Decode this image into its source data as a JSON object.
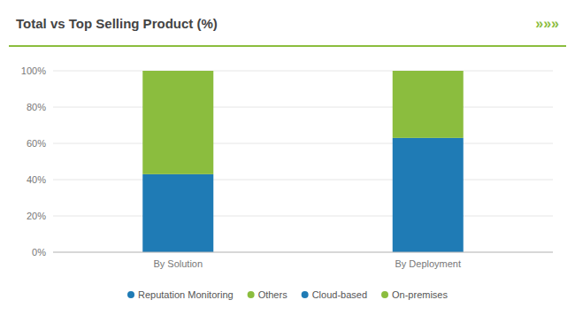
{
  "chart_data": {
    "type": "bar",
    "title": "Total vs Top Selling Product (%)",
    "categories": [
      "By Solution",
      "By Deployment"
    ],
    "series": [
      {
        "name": "Reputation Monitoring",
        "color": "#1F7BB5",
        "values": [
          43,
          null
        ]
      },
      {
        "name": "Others",
        "color": "#8BBD3E",
        "values": [
          57,
          null
        ]
      },
      {
        "name": "Cloud-based",
        "color": "#1F7BB5",
        "values": [
          null,
          63
        ]
      },
      {
        "name": "On-premises",
        "color": "#8BBD3E",
        "values": [
          null,
          37
        ]
      }
    ],
    "stacked": true,
    "ylim": [
      0,
      100
    ],
    "yticks": [
      {
        "value": 0,
        "label": "0%"
      },
      {
        "value": 20,
        "label": "20%"
      },
      {
        "value": 40,
        "label": "40%"
      },
      {
        "value": 60,
        "label": "60%"
      },
      {
        "value": 80,
        "label": "80%"
      },
      {
        "value": 100,
        "label": "100%"
      }
    ],
    "grid": true,
    "legend": "bottom",
    "annotations": [
      {
        "text": "»»»",
        "color": "#8BBD3E"
      }
    ]
  }
}
